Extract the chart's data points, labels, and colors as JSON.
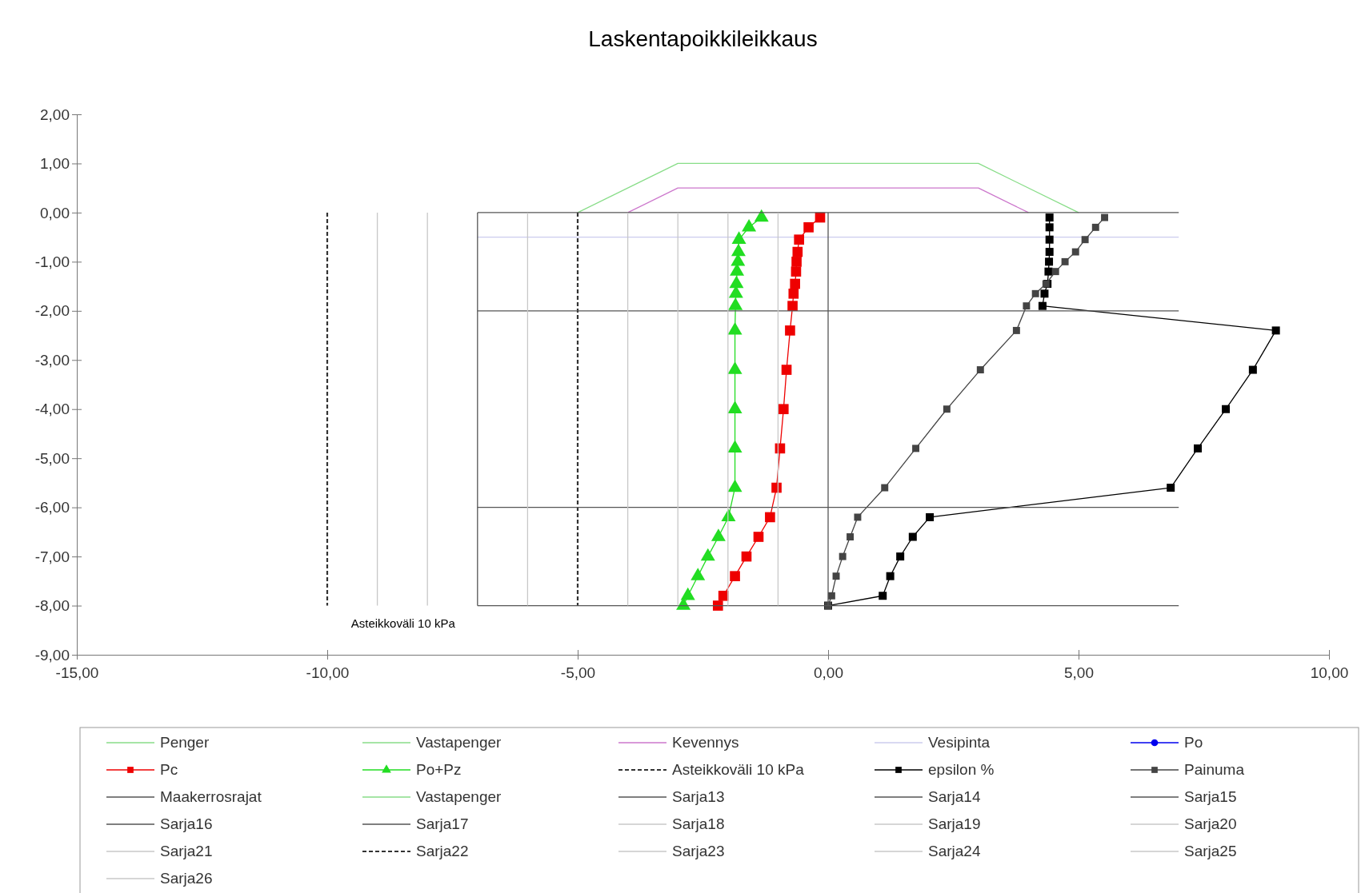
{
  "chart_data": {
    "type": "line",
    "title": "Laskentapoikkileikkaus",
    "xlim": [
      -15,
      10
    ],
    "ylim": [
      -9,
      2
    ],
    "xticks": [
      {
        "value": -15,
        "label": "-15,00"
      },
      {
        "value": -10,
        "label": "-10,00"
      },
      {
        "value": -5,
        "label": "-5,00"
      },
      {
        "value": 0,
        "label": "0,00"
      },
      {
        "value": 5,
        "label": "5,00"
      },
      {
        "value": 10,
        "label": "10,00"
      }
    ],
    "yticks": [
      {
        "value": 2,
        "label": "2,00"
      },
      {
        "value": 1,
        "label": "1,00"
      },
      {
        "value": 0,
        "label": "0,00"
      },
      {
        "value": -1,
        "label": "-1,00"
      },
      {
        "value": -2,
        "label": "-2,00"
      },
      {
        "value": -3,
        "label": "-3,00"
      },
      {
        "value": -4,
        "label": "-4,00"
      },
      {
        "value": -5,
        "label": "-5,00"
      },
      {
        "value": -6,
        "label": "-6,00"
      },
      {
        "value": -7,
        "label": "-7,00"
      },
      {
        "value": -8,
        "label": "-8,00"
      },
      {
        "value": -9,
        "label": "-9,00"
      }
    ],
    "legend": "bottom",
    "annotations": [
      "Asteikkoväli 10 kPa"
    ],
    "series": [
      {
        "name": "Penger",
        "color": "#88dd88",
        "x": [
          -5,
          -3,
          3,
          5
        ],
        "values": [
          0,
          1,
          1,
          0
        ]
      },
      {
        "name": "Vastapenger",
        "color": "#88dd88"
      },
      {
        "name": "Kevennys",
        "color": "#cc77cc",
        "x": [
          -4,
          -3,
          3,
          4
        ],
        "values": [
          0,
          0.5,
          0.5,
          0
        ]
      },
      {
        "name": "Vesipinta",
        "color": "#ccccee",
        "x": [
          -7,
          7
        ],
        "values": [
          -0.5,
          -0.5
        ]
      },
      {
        "name": "Po",
        "color": "#0000ee",
        "marker": "circle"
      },
      {
        "name": "Pc",
        "color": "#ee0000",
        "marker": "square",
        "x": [
          -0.16,
          -0.39,
          -0.58,
          -0.61,
          -0.63,
          -0.64,
          -0.66,
          -0.69,
          -0.71,
          -0.76,
          -0.83,
          -0.89,
          -0.96,
          -1.03,
          -1.16,
          -1.39,
          -1.63,
          -1.86,
          -2.09,
          -2.2
        ],
        "values": [
          -0.1,
          -0.3,
          -0.55,
          -0.8,
          -1.0,
          -1.2,
          -1.45,
          -1.65,
          -1.9,
          -2.4,
          -3.2,
          -4.0,
          -4.8,
          -5.6,
          -6.2,
          -6.6,
          -7.0,
          -7.4,
          -7.8,
          -8.0
        ]
      },
      {
        "name": "Po+Pz",
        "color": "#22dd22",
        "marker": "triangle",
        "x": [
          -1.33,
          -1.58,
          -1.78,
          -1.79,
          -1.8,
          -1.82,
          -1.83,
          -1.84,
          -1.85,
          -1.86,
          -1.86,
          -1.86,
          -1.86,
          -1.86,
          -1.99,
          -2.19,
          -2.4,
          -2.6,
          -2.8,
          -2.89
        ],
        "values": [
          -0.1,
          -0.3,
          -0.55,
          -0.8,
          -1.0,
          -1.2,
          -1.45,
          -1.65,
          -1.9,
          -2.4,
          -3.2,
          -4.0,
          -4.8,
          -5.6,
          -6.2,
          -6.6,
          -7.0,
          -7.4,
          -7.8,
          -8.0
        ]
      },
      {
        "name": "Asteikkoväli 10 kPa",
        "color": "#333333",
        "line_style": "dashed",
        "x": [
          -5,
          -5
        ],
        "values": [
          0,
          -8
        ]
      },
      {
        "name": "epsilon %",
        "color": "#000000",
        "marker": "square",
        "x": [
          4.42,
          4.42,
          4.42,
          4.42,
          4.41,
          4.4,
          4.38,
          4.32,
          4.28,
          8.94,
          8.48,
          7.94,
          7.38,
          6.84,
          2.03,
          1.69,
          1.44,
          1.24,
          1.09,
          0
        ],
        "values": [
          -0.1,
          -0.3,
          -0.55,
          -0.8,
          -1.0,
          -1.2,
          -1.45,
          -1.65,
          -1.9,
          -2.4,
          -3.2,
          -4.0,
          -4.8,
          -5.6,
          -6.2,
          -6.6,
          -7.0,
          -7.4,
          -7.8,
          -8.0
        ]
      },
      {
        "name": "Painuma",
        "color": "#444444",
        "marker": "square",
        "x": [
          5.52,
          5.34,
          5.13,
          4.94,
          4.73,
          4.54,
          4.35,
          4.14,
          3.96,
          3.76,
          3.04,
          2.37,
          1.75,
          1.13,
          0.59,
          0.44,
          0.29,
          0.16,
          0.07,
          0.0
        ],
        "values": [
          -0.1,
          -0.3,
          -0.55,
          -0.8,
          -1.0,
          -1.2,
          -1.45,
          -1.65,
          -1.9,
          -2.4,
          -3.2,
          -4.0,
          -4.8,
          -5.6,
          -6.2,
          -6.6,
          -7.0,
          -7.4,
          -7.8,
          -8.0
        ]
      },
      {
        "name": "Maakerrosrajat",
        "color": "#555555",
        "x": [
          -7,
          7
        ],
        "values": [
          0,
          0
        ]
      },
      {
        "name": "Vastapenger",
        "color": "#88dd88"
      },
      {
        "name": "Sarja13",
        "color": "#555555",
        "x": [
          -7,
          7
        ],
        "values": [
          -2,
          -2
        ]
      },
      {
        "name": "Sarja14",
        "color": "#555555",
        "x": [
          -7,
          7
        ],
        "values": [
          -6,
          -6
        ]
      },
      {
        "name": "Sarja15",
        "color": "#555555",
        "x": [
          -7,
          7
        ],
        "values": [
          -8,
          -8
        ]
      },
      {
        "name": "Sarja16",
        "color": "#555555",
        "x": [
          -7,
          -7
        ],
        "values": [
          0,
          -8
        ]
      },
      {
        "name": "Sarja17",
        "color": "#555555",
        "x": [
          0,
          0
        ],
        "values": [
          0,
          -8
        ]
      },
      {
        "name": "Sarja18",
        "color": "#c8c8c8",
        "x": [
          -1,
          -1
        ],
        "values": [
          0,
          -8
        ]
      },
      {
        "name": "Sarja19",
        "color": "#c8c8c8",
        "x": [
          -2,
          -2
        ],
        "values": [
          0,
          -8
        ]
      },
      {
        "name": "Sarja20",
        "color": "#c8c8c8",
        "x": [
          -3,
          -3
        ],
        "values": [
          0,
          -8
        ]
      },
      {
        "name": "Sarja21",
        "color": "#c8c8c8",
        "x": [
          -4,
          -4
        ],
        "values": [
          0,
          -8
        ]
      },
      {
        "name": "Sarja22",
        "color": "#333333",
        "line_style": "dashed",
        "x": [
          -10,
          -10
        ],
        "values": [
          0,
          -8
        ]
      },
      {
        "name": "Sarja23",
        "color": "#c8c8c8",
        "x": [
          -6,
          -6
        ],
        "values": [
          0,
          -8
        ]
      },
      {
        "name": "Sarja24",
        "color": "#c8c8c8",
        "x": [
          -8,
          -8
        ],
        "values": [
          0,
          -8
        ]
      },
      {
        "name": "Sarja25",
        "color": "#c8c8c8",
        "x": [
          -9,
          -9
        ],
        "values": [
          0,
          -8
        ]
      },
      {
        "name": "Sarja26",
        "color": "#c8c8c8"
      }
    ]
  }
}
